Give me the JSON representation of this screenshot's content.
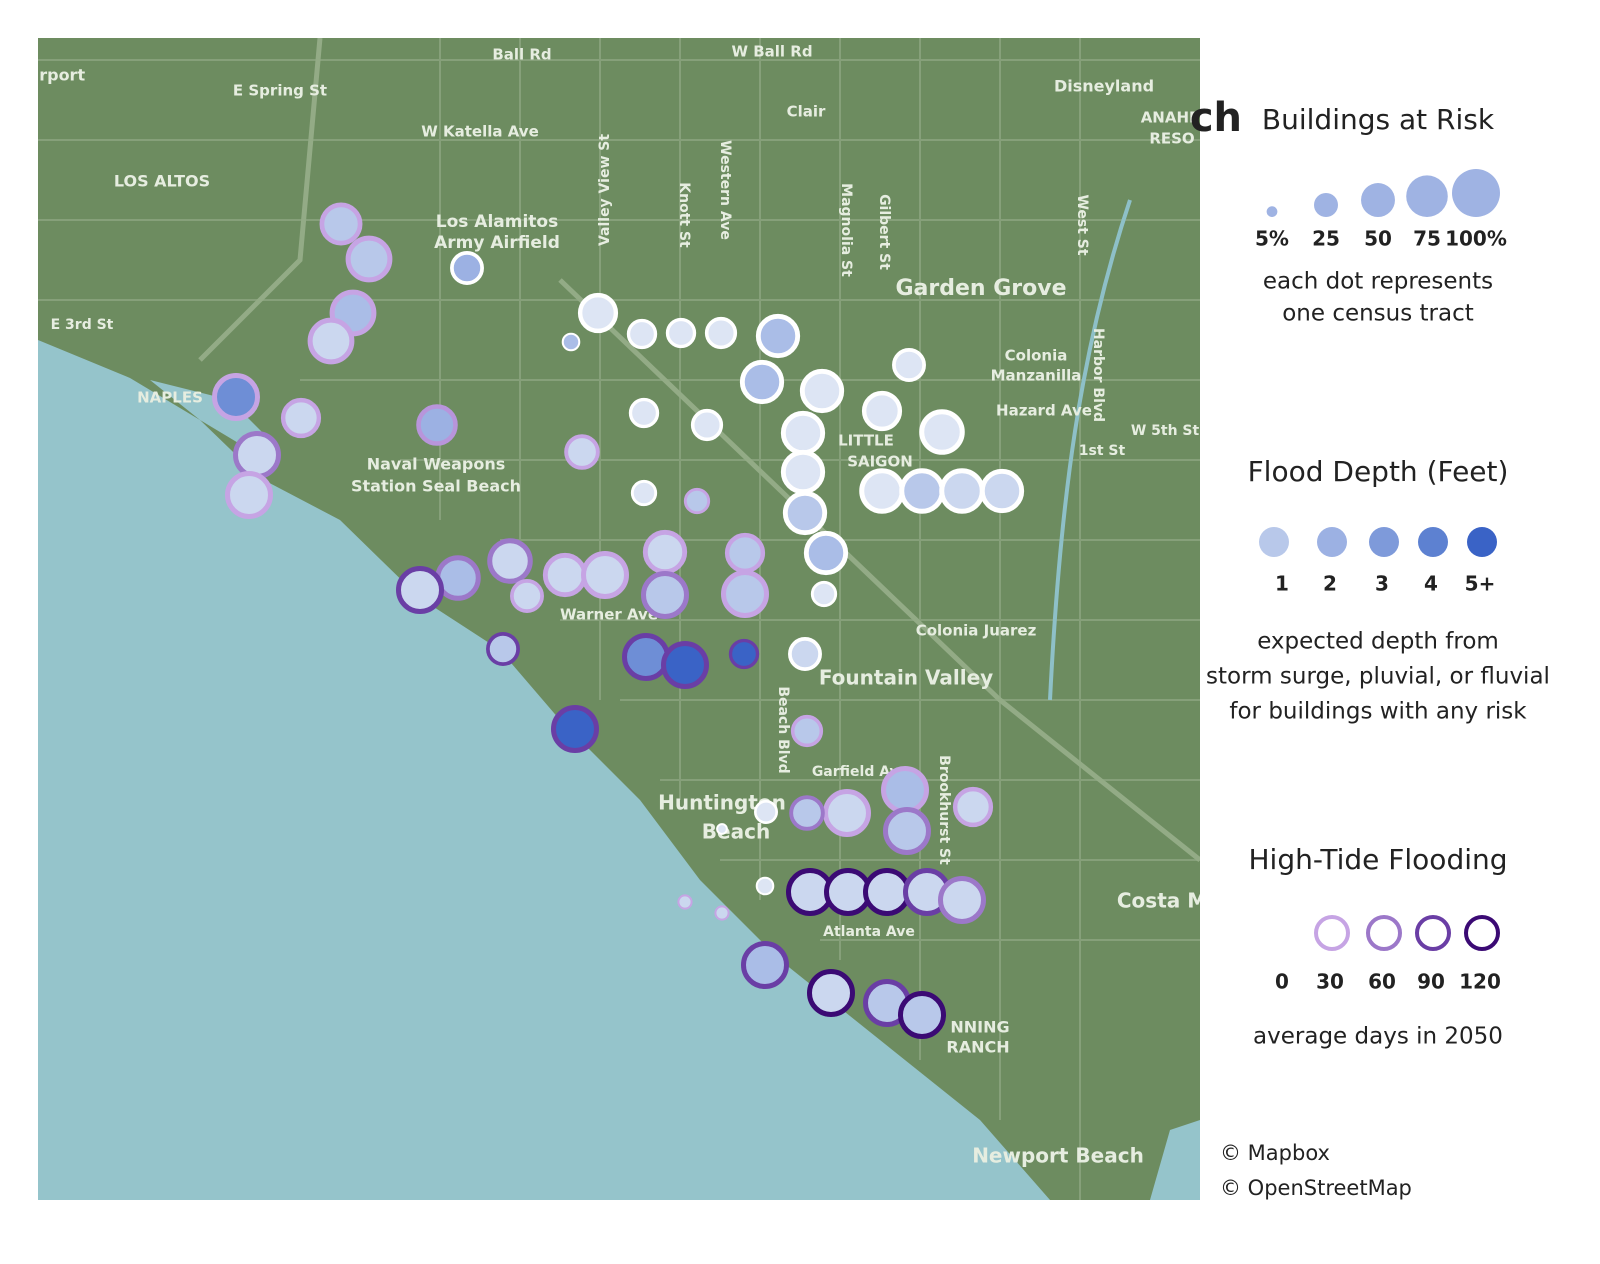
{
  "title_fragment": "ch",
  "map": {
    "labels": [
      "ch Airport",
      "Ball Rd",
      "W Ball Rd",
      "Disneyland",
      "E Spring St",
      "W Katella Ave",
      "Clair",
      "LOS ALTOS",
      "Los Alamitos",
      "Army Airfield",
      "Garden Grove",
      "E 3rd St",
      "Colonia",
      "Manzanilla",
      "Hazard Ave",
      "NAPLES",
      "Naval Weapons",
      "Station Seal Beach",
      "LITTLE",
      "SAIGON",
      "1st St",
      "W 5th St",
      "Warner Ave",
      "Colonia Juarez",
      "Fountain Valley",
      "Huntington",
      "Beach",
      "Garfield Ave",
      "Atlanta Ave",
      "Costa M",
      "Newport Beach",
      "NNING",
      "RANCH",
      "ANAHE",
      "RESO",
      "Valley View St",
      "Knott St",
      "Western Ave",
      "Magnolia St",
      "Gilbert St",
      "West St",
      "Harbor Blvd",
      "Brookhurst St",
      "Beach Blvd"
    ],
    "credits": [
      "© Mapbox",
      "© OpenStreetMap"
    ]
  },
  "tracts": [
    {
      "risk": 80,
      "depth": 1,
      "days": 30
    },
    {
      "risk": 95,
      "depth": 1,
      "days": 30
    },
    {
      "risk": 95,
      "depth": 1.5,
      "days": 30
    },
    {
      "risk": 95,
      "depth": 0.5,
      "days": 30
    },
    {
      "risk": 50,
      "depth": 2,
      "days": 0
    },
    {
      "risk": 100,
      "depth": 3.5,
      "days": 30
    },
    {
      "risk": 70,
      "depth": 0.5,
      "days": 30
    },
    {
      "risk": 75,
      "depth": 2,
      "days": 40
    },
    {
      "risk": 100,
      "depth": 0.5,
      "days": 60
    },
    {
      "risk": 100,
      "depth": 0.5,
      "days": 30
    },
    {
      "risk": 70,
      "depth": 0,
      "days": 0
    },
    {
      "risk": 15,
      "depth": 1.5,
      "days": 0
    },
    {
      "risk": 40,
      "depth": 0,
      "days": 0
    },
    {
      "risk": 40,
      "depth": 0,
      "days": 0
    },
    {
      "risk": 45,
      "depth": 0,
      "days": 0
    },
    {
      "risk": 85,
      "depth": 1.5,
      "days": 0
    },
    {
      "risk": 85,
      "depth": 1.5,
      "days": 0
    },
    {
      "risk": 85,
      "depth": 0,
      "days": 0
    },
    {
      "risk": 50,
      "depth": 0,
      "days": 0
    },
    {
      "risk": 40,
      "depth": 0,
      "days": 0
    },
    {
      "risk": 45,
      "depth": 0,
      "days": 0
    },
    {
      "risk": 70,
      "depth": 0,
      "days": 0
    },
    {
      "risk": 90,
      "depth": 0,
      "days": 0
    },
    {
      "risk": 85,
      "depth": 0,
      "days": 0
    },
    {
      "risk": 85,
      "depth": 0,
      "days": 0
    },
    {
      "risk": 55,
      "depth": 0.5,
      "days": 30
    },
    {
      "risk": 30,
      "depth": 0,
      "days": 0
    },
    {
      "risk": 30,
      "depth": 1,
      "days": 30
    },
    {
      "risk": 90,
      "depth": 0,
      "days": 0
    },
    {
      "risk": 90,
      "depth": 1,
      "days": 0
    },
    {
      "risk": 90,
      "depth": 0.5,
      "days": 0
    },
    {
      "risk": 85,
      "depth": 0.5,
      "days": 0
    },
    {
      "risk": 85,
      "depth": 1,
      "days": 0
    },
    {
      "risk": 85,
      "depth": 1.5,
      "days": 0
    },
    {
      "risk": 30,
      "depth": 0,
      "days": 0
    },
    {
      "risk": 50,
      "depth": 0.5,
      "days": 0
    },
    {
      "risk": 90,
      "depth": 0.5,
      "days": 60
    },
    {
      "risk": 90,
      "depth": 1.5,
      "days": 60
    },
    {
      "risk": 100,
      "depth": 0.5,
      "days": 90
    },
    {
      "risk": 50,
      "depth": 0.5,
      "days": 30
    },
    {
      "risk": 85,
      "depth": 0.5,
      "days": 30
    },
    {
      "risk": 100,
      "depth": 0.5,
      "days": 30
    },
    {
      "risk": 85,
      "depth": 0.5,
      "days": 30
    },
    {
      "risk": 100,
      "depth": 1,
      "days": 60
    },
    {
      "risk": 70,
      "depth": 1,
      "days": 30
    },
    {
      "risk": 100,
      "depth": 1,
      "days": 30
    },
    {
      "risk": 50,
      "depth": 1,
      "days": 90
    },
    {
      "risk": 100,
      "depth": 3.5,
      "days": 90
    },
    {
      "risk": 100,
      "depth": 5,
      "days": 90
    },
    {
      "risk": 40,
      "depth": 5,
      "days": 90
    },
    {
      "risk": 100,
      "depth": 5,
      "days": 90
    },
    {
      "risk": 45,
      "depth": 1,
      "days": 30
    },
    {
      "risk": 100,
      "depth": 1.5,
      "days": 30
    },
    {
      "risk": 70,
      "depth": 0.5,
      "days": 30
    },
    {
      "risk": 100,
      "depth": 0.5,
      "days": 30
    },
    {
      "risk": 100,
      "depth": 1,
      "days": 60
    },
    {
      "risk": 55,
      "depth": 1,
      "days": 60
    },
    {
      "risk": 25,
      "depth": 0,
      "days": 0
    },
    {
      "risk": 6,
      "depth": 0,
      "days": 0
    },
    {
      "risk": 15,
      "depth": 0,
      "days": 0
    },
    {
      "risk": 10,
      "depth": 0.5,
      "days": 30
    },
    {
      "risk": 10,
      "depth": 0.5,
      "days": 30
    },
    {
      "risk": 100,
      "depth": 0.5,
      "days": 120
    },
    {
      "risk": 100,
      "depth": 0.5,
      "days": 120
    },
    {
      "risk": 100,
      "depth": 0.5,
      "days": 120
    },
    {
      "risk": 100,
      "depth": 0.5,
      "days": 90
    },
    {
      "risk": 100,
      "depth": 0.5,
      "days": 60
    },
    {
      "risk": 100,
      "depth": 1.5,
      "days": 90
    },
    {
      "risk": 100,
      "depth": 0.5,
      "days": 120
    },
    {
      "risk": 100,
      "depth": 1,
      "days": 90
    },
    {
      "risk": 100,
      "depth": 1,
      "days": 120
    }
  ],
  "legend": {
    "size": {
      "title": "Buildings at Risk",
      "color": "#9fb3e3",
      "values": [
        {
          "value": 5,
          "label": "5%"
        },
        25,
        50,
        75,
        {
          "value": 100,
          "label": "100%"
        }
      ],
      "note": [
        "each dot represents",
        "one census tract"
      ]
    },
    "depth": {
      "title": "Flood Depth (Feet)",
      "zero_color": "#dde5f4",
      "values": [
        1,
        2,
        3,
        4,
        {
          "value": 5,
          "label": "5+"
        }
      ],
      "colors": [
        "#b8c8ea",
        "#9cb1e3",
        "#7e9ada",
        "#5d81d1",
        "#3a63c6"
      ],
      "note": [
        "expected depth from",
        "storm surge, pluvial, or fluvial",
        "for buildings with any risk"
      ]
    },
    "days": {
      "title": "High-Tide Flooding",
      "values": [
        0,
        30,
        60,
        90,
        120
      ],
      "colors": [
        "#ffffff",
        "#c6a4e4",
        "#9c78c9",
        "#6a3ea5",
        "#3b0a74"
      ],
      "note": [
        "average days in 2050"
      ]
    }
  }
}
